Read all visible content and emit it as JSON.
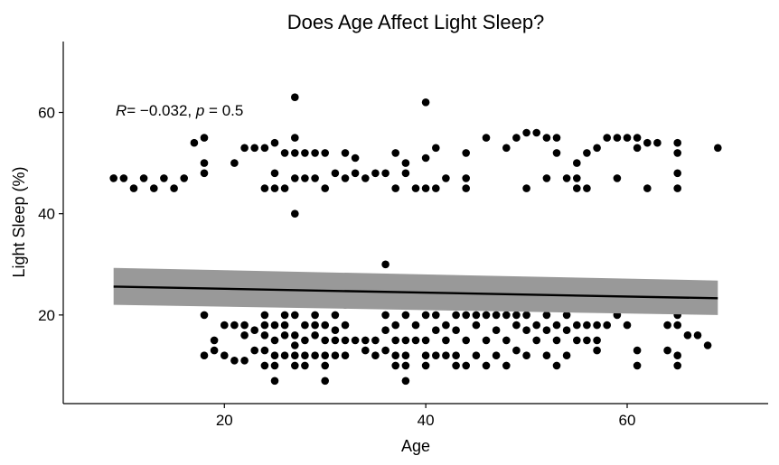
{
  "chart_data": {
    "type": "scatter",
    "title": "Does Age Affect Light Sleep?",
    "xlabel": "Age",
    "ylabel": "Light Sleep (%)",
    "xlim": [
      4,
      74
    ],
    "ylim": [
      2.5,
      74
    ],
    "x_ticks": [
      20,
      40,
      60
    ],
    "y_ticks": [
      20,
      40,
      60
    ],
    "grid": false,
    "annotation": {
      "r_symbol": "R",
      "r_value": "= −0.032, ",
      "p_symbol": "p",
      "p_value": " = 0.5"
    },
    "regression": {
      "x": [
        9,
        69
      ],
      "y": [
        25.6,
        23.3
      ],
      "ci_lower": [
        22.0,
        20.0
      ],
      "ci_upper": [
        29.3,
        26.8
      ],
      "line_color": "#000000",
      "ci_color": "#999999"
    },
    "point_color": "#000000",
    "points": [
      [
        9,
        47
      ],
      [
        10,
        47
      ],
      [
        11,
        45
      ],
      [
        12,
        47
      ],
      [
        13,
        45
      ],
      [
        14,
        47
      ],
      [
        15,
        45
      ],
      [
        16,
        47
      ],
      [
        17,
        54
      ],
      [
        18,
        55
      ],
      [
        18,
        50
      ],
      [
        18,
        48
      ],
      [
        18,
        20
      ],
      [
        18,
        12
      ],
      [
        19,
        15
      ],
      [
        19,
        13
      ],
      [
        20,
        18
      ],
      [
        20,
        12
      ],
      [
        21,
        50
      ],
      [
        21,
        18
      ],
      [
        21,
        11
      ],
      [
        22,
        53
      ],
      [
        22,
        18
      ],
      [
        22,
        16
      ],
      [
        22,
        11
      ],
      [
        23,
        53
      ],
      [
        23,
        17
      ],
      [
        23,
        13
      ],
      [
        24,
        53
      ],
      [
        24,
        45
      ],
      [
        24,
        20
      ],
      [
        24,
        18
      ],
      [
        24,
        16
      ],
      [
        24,
        13
      ],
      [
        24,
        10
      ],
      [
        25,
        54
      ],
      [
        25,
        48
      ],
      [
        25,
        45
      ],
      [
        25,
        18
      ],
      [
        25,
        15
      ],
      [
        25,
        12
      ],
      [
        25,
        10
      ],
      [
        25,
        7
      ],
      [
        26,
        52
      ],
      [
        26,
        45
      ],
      [
        26,
        20
      ],
      [
        26,
        18
      ],
      [
        26,
        16
      ],
      [
        26,
        12
      ],
      [
        27,
        63
      ],
      [
        27,
        55
      ],
      [
        27,
        52
      ],
      [
        27,
        47
      ],
      [
        27,
        40
      ],
      [
        27,
        20
      ],
      [
        27,
        16
      ],
      [
        27,
        14
      ],
      [
        27,
        12
      ],
      [
        27,
        10
      ],
      [
        28,
        52
      ],
      [
        28,
        47
      ],
      [
        28,
        18
      ],
      [
        28,
        15
      ],
      [
        28,
        12
      ],
      [
        28,
        10
      ],
      [
        29,
        52
      ],
      [
        29,
        47
      ],
      [
        29,
        20
      ],
      [
        29,
        18
      ],
      [
        29,
        16
      ],
      [
        29,
        12
      ],
      [
        30,
        52
      ],
      [
        30,
        45
      ],
      [
        30,
        18
      ],
      [
        30,
        15
      ],
      [
        30,
        12
      ],
      [
        30,
        10
      ],
      [
        30,
        7
      ],
      [
        31,
        48
      ],
      [
        31,
        20
      ],
      [
        31,
        17
      ],
      [
        31,
        15
      ],
      [
        31,
        12
      ],
      [
        32,
        52
      ],
      [
        32,
        47
      ],
      [
        32,
        22
      ],
      [
        32,
        18
      ],
      [
        32,
        15
      ],
      [
        32,
        12
      ],
      [
        33,
        51
      ],
      [
        33,
        48
      ],
      [
        33,
        15
      ],
      [
        34,
        47
      ],
      [
        34,
        15
      ],
      [
        34,
        13
      ],
      [
        35,
        48
      ],
      [
        35,
        15
      ],
      [
        35,
        12
      ],
      [
        36,
        30
      ],
      [
        36,
        48
      ],
      [
        36,
        20
      ],
      [
        36,
        17
      ],
      [
        36,
        13
      ],
      [
        37,
        52
      ],
      [
        37,
        45
      ],
      [
        37,
        18
      ],
      [
        37,
        15
      ],
      [
        37,
        12
      ],
      [
        37,
        10
      ],
      [
        38,
        50
      ],
      [
        38,
        48
      ],
      [
        38,
        20
      ],
      [
        38,
        15
      ],
      [
        38,
        12
      ],
      [
        38,
        10
      ],
      [
        38,
        7
      ],
      [
        39,
        45
      ],
      [
        39,
        18
      ],
      [
        39,
        15
      ],
      [
        40,
        62
      ],
      [
        40,
        51
      ],
      [
        40,
        45
      ],
      [
        40,
        20
      ],
      [
        40,
        15
      ],
      [
        40,
        12
      ],
      [
        40,
        10
      ],
      [
        41,
        53
      ],
      [
        41,
        45
      ],
      [
        41,
        20
      ],
      [
        41,
        17
      ],
      [
        41,
        12
      ],
      [
        42,
        47
      ],
      [
        42,
        18
      ],
      [
        42,
        15
      ],
      [
        42,
        12
      ],
      [
        43,
        20
      ],
      [
        43,
        17
      ],
      [
        43,
        12
      ],
      [
        43,
        10
      ],
      [
        44,
        52
      ],
      [
        44,
        47
      ],
      [
        44,
        45
      ],
      [
        44,
        20
      ],
      [
        44,
        15
      ],
      [
        44,
        10
      ],
      [
        45,
        20
      ],
      [
        45,
        18
      ],
      [
        45,
        12
      ],
      [
        46,
        55
      ],
      [
        46,
        20
      ],
      [
        46,
        15
      ],
      [
        46,
        10
      ],
      [
        47,
        20
      ],
      [
        47,
        17
      ],
      [
        47,
        12
      ],
      [
        48,
        53
      ],
      [
        48,
        20
      ],
      [
        48,
        15
      ],
      [
        48,
        10
      ],
      [
        49,
        55
      ],
      [
        49,
        20
      ],
      [
        49,
        18
      ],
      [
        49,
        13
      ],
      [
        50,
        56
      ],
      [
        50,
        45
      ],
      [
        50,
        20
      ],
      [
        50,
        17
      ],
      [
        50,
        12
      ],
      [
        51,
        56
      ],
      [
        51,
        18
      ],
      [
        51,
        15
      ],
      [
        52,
        55
      ],
      [
        52,
        47
      ],
      [
        52,
        20
      ],
      [
        52,
        17
      ],
      [
        52,
        12
      ],
      [
        53,
        55
      ],
      [
        53,
        52
      ],
      [
        53,
        18
      ],
      [
        53,
        15
      ],
      [
        53,
        10
      ],
      [
        54,
        47
      ],
      [
        54,
        20
      ],
      [
        54,
        17
      ],
      [
        54,
        12
      ],
      [
        55,
        50
      ],
      [
        55,
        47
      ],
      [
        55,
        45
      ],
      [
        55,
        18
      ],
      [
        55,
        15
      ],
      [
        56,
        52
      ],
      [
        56,
        45
      ],
      [
        56,
        22
      ],
      [
        56,
        18
      ],
      [
        56,
        15
      ],
      [
        57,
        53
      ],
      [
        57,
        18
      ],
      [
        57,
        15
      ],
      [
        57,
        13
      ],
      [
        58,
        55
      ],
      [
        58,
        18
      ],
      [
        59,
        55
      ],
      [
        59,
        47
      ],
      [
        59,
        20
      ],
      [
        60,
        55
      ],
      [
        60,
        18
      ],
      [
        61,
        55
      ],
      [
        61,
        53
      ],
      [
        61,
        13
      ],
      [
        61,
        10
      ],
      [
        62,
        54
      ],
      [
        62,
        45
      ],
      [
        63,
        54
      ],
      [
        64,
        13
      ],
      [
        64,
        18
      ],
      [
        65,
        54
      ],
      [
        65,
        48
      ],
      [
        65,
        45
      ],
      [
        65,
        52
      ],
      [
        65,
        20
      ],
      [
        65,
        18
      ],
      [
        65,
        12
      ],
      [
        65,
        10
      ],
      [
        66,
        16
      ],
      [
        67,
        16
      ],
      [
        68,
        14
      ],
      [
        69,
        53
      ]
    ]
  }
}
